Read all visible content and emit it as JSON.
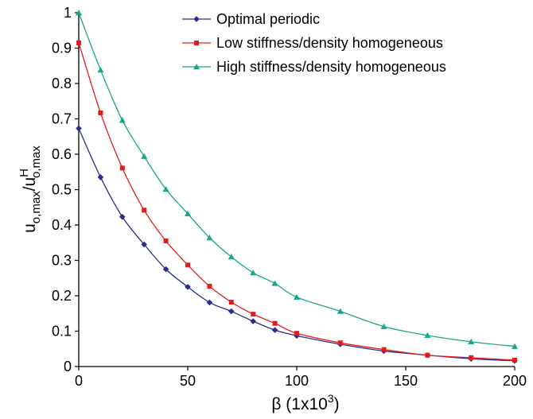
{
  "chart_data": {
    "type": "line",
    "xlim": [
      0,
      200
    ],
    "ylim": [
      0,
      1
    ],
    "xticks": [
      "0",
      "50",
      "100",
      "150",
      "200"
    ],
    "yticks": [
      "0",
      "0.1",
      "0.2",
      "0.3",
      "0.4",
      "0.5",
      "0.6",
      "0.7",
      "0.8",
      "0.9",
      "1"
    ],
    "xlabel": "β (1x10",
    "xlabel_sup": "3",
    "xlabel_end": ")",
    "ylabel": {
      "u": "u",
      "sub1": "o,max",
      "slash": "/u",
      "sup": "H",
      "sub2": "o,max"
    },
    "grid": false,
    "legend_position": "top-right",
    "series": [
      {
        "name": "Optimal periodic",
        "color": "#2b2b8f",
        "marker": "diamond",
        "x": [
          0,
          10,
          20,
          30,
          40,
          50,
          60,
          70,
          80,
          90,
          100,
          120,
          140,
          160,
          180,
          200
        ],
        "y": [
          0.673,
          0.535,
          0.423,
          0.345,
          0.275,
          0.225,
          0.181,
          0.156,
          0.128,
          0.103,
          0.087,
          0.063,
          0.044,
          0.032,
          0.022,
          0.016
        ]
      },
      {
        "name": "Low stiffness/density homogeneous",
        "color": "#e31b1b",
        "marker": "square",
        "x": [
          0,
          10,
          20,
          30,
          40,
          50,
          60,
          70,
          80,
          90,
          100,
          120,
          140,
          160,
          180,
          200
        ],
        "y": [
          0.915,
          0.717,
          0.561,
          0.442,
          0.355,
          0.287,
          0.227,
          0.182,
          0.148,
          0.122,
          0.094,
          0.067,
          0.048,
          0.032,
          0.025,
          0.018
        ]
      },
      {
        "name": "High stiffness/density homogeneous",
        "color": "#1aa58c",
        "marker": "triangle",
        "x": [
          0,
          10,
          20,
          30,
          40,
          50,
          60,
          70,
          80,
          90,
          100,
          120,
          140,
          160,
          180,
          200
        ],
        "y": [
          1.0,
          0.838,
          0.696,
          0.594,
          0.501,
          0.432,
          0.364,
          0.31,
          0.265,
          0.235,
          0.196,
          0.156,
          0.113,
          0.088,
          0.07,
          0.057
        ]
      }
    ]
  }
}
